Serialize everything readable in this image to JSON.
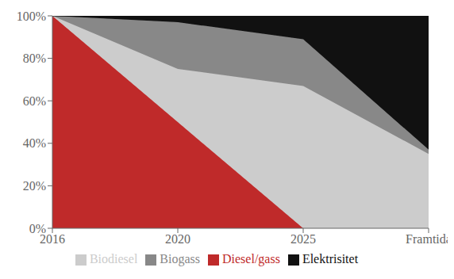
{
  "chart_data": {
    "type": "area",
    "stacked": true,
    "categories": [
      "2016",
      "2020",
      "2025",
      "Framtida"
    ],
    "series": [
      {
        "name": "Diesel/gass",
        "color": "#bf2a2a",
        "values": [
          1.0,
          0.5,
          0.0,
          0.0
        ]
      },
      {
        "name": "Biodiesel",
        "color": "#cccccc",
        "values": [
          0.0,
          0.25,
          0.67,
          0.35
        ]
      },
      {
        "name": "Biogass",
        "color": "#888888",
        "values": [
          0.0,
          0.22,
          0.22,
          0.02
        ]
      },
      {
        "name": "Elektrisitet",
        "color": "#111111",
        "values": [
          0.0,
          0.03,
          0.11,
          0.63
        ]
      }
    ],
    "ylim": [
      0,
      1.0
    ],
    "yticks": [
      {
        "value": 0.0,
        "label": "0%"
      },
      {
        "value": 0.2,
        "label": "20%"
      },
      {
        "value": 0.4,
        "label": "40%"
      },
      {
        "value": 0.6,
        "label": "60%"
      },
      {
        "value": 0.8,
        "label": "80%"
      },
      {
        "value": 1.0,
        "label": "100%"
      }
    ],
    "grid": false,
    "legend": "bottom"
  }
}
